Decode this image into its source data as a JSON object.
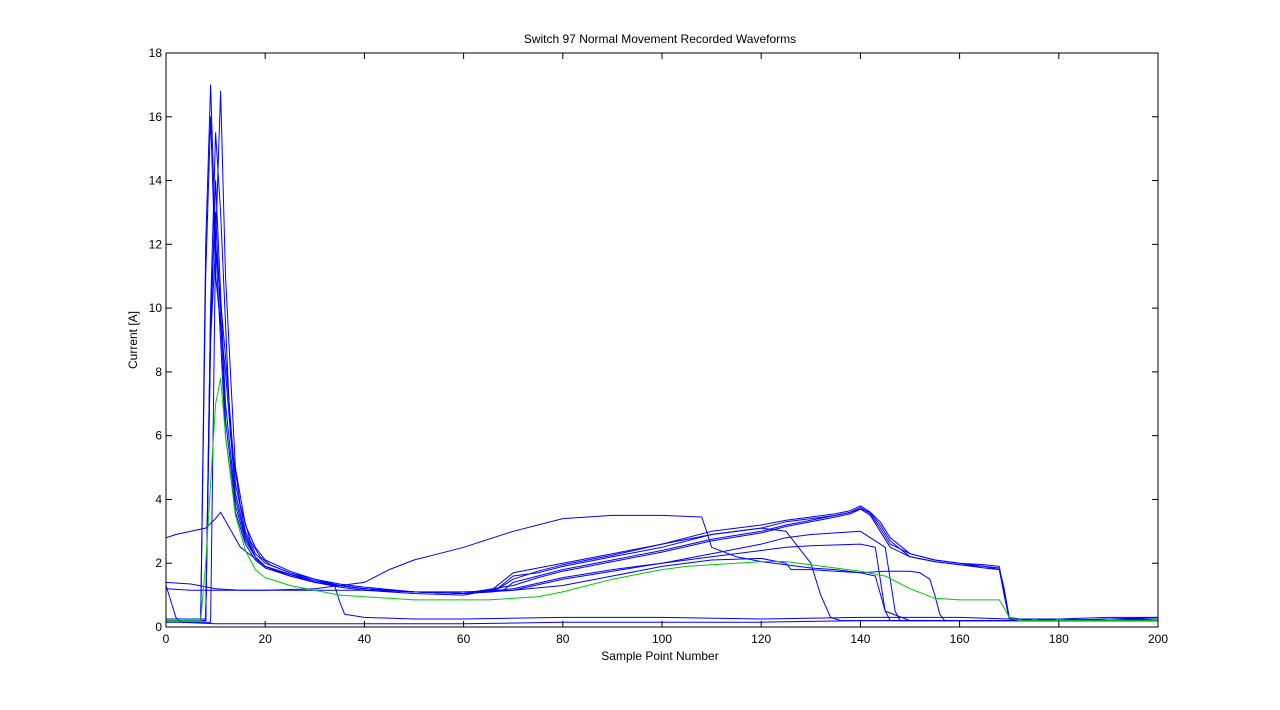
{
  "chart_data": {
    "type": "line",
    "title": "Switch 97 Normal Movement Recorded Waveforms",
    "xlabel": "Sample Point Number",
    "ylabel": "Current [A]",
    "xlim": [
      0,
      200
    ],
    "ylim": [
      0,
      18
    ],
    "xticks": [
      0,
      20,
      40,
      60,
      80,
      100,
      120,
      140,
      160,
      180,
      200
    ],
    "yticks": [
      0,
      2,
      4,
      6,
      8,
      10,
      12,
      14,
      16,
      18
    ],
    "grid": false,
    "legend": "none",
    "colors": {
      "recorded": "#0000ff",
      "reference": "#00cc00",
      "axes": "#000000"
    },
    "series": [
      {
        "color": "#0000ff",
        "x": [
          0,
          7,
          8,
          9,
          10,
          12,
          14,
          16,
          18,
          20,
          25,
          30,
          35,
          40,
          50,
          60,
          66,
          70,
          75,
          80,
          90,
          100,
          110,
          120,
          125,
          130,
          135,
          138,
          140,
          142,
          144,
          146,
          150,
          155,
          160,
          165,
          168,
          169,
          170,
          172,
          175,
          180,
          190,
          200
        ],
        "y": [
          0.25,
          0.25,
          12,
          17,
          12,
          8.5,
          4.5,
          3,
          2.3,
          2,
          1.7,
          1.45,
          1.3,
          1.2,
          1.1,
          1.05,
          1.1,
          1.6,
          1.7,
          1.9,
          2.2,
          2.5,
          2.9,
          3.1,
          3.3,
          3.4,
          3.5,
          3.6,
          3.7,
          3.6,
          3.3,
          2.8,
          2.3,
          2.1,
          2.0,
          1.95,
          1.9,
          1.0,
          0.3,
          0.25,
          0.2,
          0.2,
          0.2,
          0.2
        ]
      },
      {
        "color": "#0000ff",
        "x": [
          0,
          7,
          8,
          9,
          10,
          12,
          14,
          16,
          18,
          20,
          25,
          30,
          35,
          40,
          50,
          60,
          67,
          70,
          75,
          80,
          90,
          100,
          110,
          120,
          125,
          130,
          135,
          138,
          140,
          142,
          144,
          146,
          150,
          155,
          160,
          165,
          168,
          169,
          170,
          172,
          175,
          180,
          190,
          200
        ],
        "y": [
          0.2,
          0.2,
          11,
          16,
          11,
          8,
          4.2,
          2.9,
          2.2,
          1.9,
          1.65,
          1.4,
          1.25,
          1.15,
          1.05,
          1.0,
          1.2,
          1.5,
          1.75,
          1.95,
          2.25,
          2.6,
          3.0,
          3.2,
          3.35,
          3.45,
          3.55,
          3.65,
          3.8,
          3.6,
          3.2,
          2.7,
          2.2,
          2.05,
          1.95,
          1.9,
          1.85,
          1.2,
          0.3,
          0.2,
          0.25,
          0.2,
          0.25,
          0.3
        ]
      },
      {
        "color": "#0000ff",
        "x": [
          0,
          8,
          9,
          10,
          11,
          13,
          15,
          17,
          19,
          21,
          25,
          30,
          35,
          40,
          50,
          60,
          68,
          70,
          75,
          80,
          90,
          100,
          110,
          120,
          125,
          130,
          135,
          138,
          140,
          142,
          144,
          146,
          150,
          155,
          160,
          165,
          168,
          169,
          170,
          172,
          175,
          180,
          190,
          200
        ],
        "y": [
          0.2,
          0.2,
          10,
          15.5,
          13,
          6,
          3.8,
          2.7,
          2.2,
          1.95,
          1.7,
          1.5,
          1.3,
          1.2,
          1.1,
          1.05,
          1.15,
          1.4,
          1.6,
          1.8,
          2.1,
          2.4,
          2.75,
          3.0,
          3.2,
          3.35,
          3.5,
          3.6,
          3.75,
          3.55,
          3.1,
          2.6,
          2.3,
          2.1,
          2.0,
          1.9,
          1.8,
          1.0,
          0.25,
          0.2,
          0.2,
          0.25,
          0.2,
          0.2
        ]
      },
      {
        "color": "#0000ff",
        "x": [
          0,
          9,
          10,
          11,
          12,
          14,
          16,
          18,
          20,
          25,
          30,
          35,
          40,
          50,
          60,
          70,
          75,
          80,
          90,
          100,
          110,
          120,
          125,
          130,
          135,
          138,
          140,
          142,
          144,
          146,
          150,
          155,
          160,
          165,
          168,
          169,
          170,
          172,
          175,
          180,
          190,
          200
        ],
        "y": [
          0.15,
          0.15,
          12,
          16.8,
          11,
          5,
          3.2,
          2.5,
          2.1,
          1.75,
          1.5,
          1.35,
          1.25,
          1.1,
          1.05,
          1.3,
          1.55,
          1.75,
          2.05,
          2.35,
          2.7,
          2.95,
          3.15,
          3.3,
          3.45,
          3.55,
          3.7,
          3.5,
          3.0,
          2.5,
          2.2,
          2.05,
          1.95,
          1.85,
          1.8,
          1.1,
          0.3,
          0.2,
          0.2,
          0.2,
          0.2,
          0.25
        ]
      },
      {
        "color": "#0000ff",
        "x": [
          0,
          8,
          9,
          10,
          12,
          14,
          16,
          18,
          20,
          25,
          30,
          35,
          40,
          50,
          60,
          66,
          70,
          75,
          80,
          90,
          100,
          110,
          120,
          125,
          130,
          132,
          134,
          136,
          140,
          150,
          160,
          170,
          180,
          190,
          200
        ],
        "y": [
          0.25,
          0.25,
          9,
          14,
          7,
          4,
          2.8,
          2.2,
          1.9,
          1.65,
          1.45,
          1.3,
          1.2,
          1.1,
          1.05,
          1.2,
          1.7,
          1.85,
          2.0,
          2.3,
          2.6,
          2.9,
          3.1,
          3.0,
          2.0,
          1.0,
          0.3,
          0.2,
          0.2,
          0.2,
          0.2,
          0.2,
          0.2,
          0.25,
          0.25
        ]
      },
      {
        "color": "#0000ff",
        "x": [
          0,
          8,
          9,
          10,
          12,
          14,
          16,
          18,
          20,
          25,
          30,
          35,
          40,
          50,
          60,
          70,
          80,
          90,
          100,
          110,
          120,
          125,
          130,
          140,
          143,
          144,
          145,
          146,
          150,
          160,
          170,
          180,
          190,
          200
        ],
        "y": [
          0.2,
          0.2,
          10,
          13,
          6.5,
          3.8,
          2.7,
          2.2,
          1.9,
          1.65,
          1.45,
          1.3,
          1.2,
          1.1,
          1.05,
          1.2,
          1.55,
          1.8,
          2.0,
          2.2,
          2.4,
          2.5,
          2.55,
          2.6,
          2.5,
          1.5,
          0.5,
          0.2,
          0.2,
          0.2,
          0.2,
          0.2,
          0.2,
          0.2
        ]
      },
      {
        "color": "#0000ff",
        "x": [
          0,
          8,
          9,
          10,
          12,
          14,
          16,
          18,
          20,
          25,
          30,
          35,
          40,
          50,
          60,
          70,
          80,
          90,
          100,
          110,
          120,
          125,
          130,
          135,
          140,
          145,
          146,
          147,
          148,
          150,
          160,
          170,
          180,
          190,
          200
        ],
        "y": [
          0.2,
          0.2,
          9,
          12,
          6,
          3.6,
          2.6,
          2.1,
          1.85,
          1.6,
          1.4,
          1.3,
          1.2,
          1.1,
          1.05,
          1.15,
          1.5,
          1.75,
          2.0,
          2.3,
          2.6,
          2.8,
          2.9,
          2.95,
          3.0,
          2.5,
          1.5,
          0.5,
          0.2,
          0.2,
          0.2,
          0.2,
          0.2,
          0.2,
          0.2
        ]
      },
      {
        "color": "#0000ff",
        "x": [
          0,
          1,
          2,
          5,
          8,
          10,
          11,
          15,
          20,
          25,
          30,
          34,
          35,
          36,
          40,
          50,
          60,
          80,
          100,
          120,
          140,
          160,
          170,
          180,
          190,
          200
        ],
        "y": [
          2.8,
          2.85,
          2.9,
          3.0,
          3.1,
          3.4,
          3.6,
          2.5,
          1.9,
          1.6,
          1.4,
          1.3,
          0.8,
          0.4,
          0.3,
          0.25,
          0.25,
          0.3,
          0.3,
          0.25,
          0.3,
          0.3,
          0.25,
          0.25,
          0.3,
          0.3
        ]
      },
      {
        "color": "#0000ff",
        "x": [
          0,
          5,
          10,
          15,
          20,
          30,
          40,
          45,
          50,
          55,
          60,
          70,
          80,
          90,
          100,
          108,
          109,
          110,
          115,
          120,
          125,
          130,
          135,
          140,
          143,
          145,
          150,
          160,
          170,
          180,
          190,
          200
        ],
        "y": [
          1.4,
          1.35,
          1.2,
          1.15,
          1.15,
          1.2,
          1.4,
          1.8,
          2.1,
          2.3,
          2.5,
          3.0,
          3.4,
          3.5,
          3.5,
          3.45,
          3.0,
          2.5,
          2.2,
          2.05,
          1.95,
          1.85,
          1.8,
          1.7,
          1.6,
          0.5,
          0.2,
          0.2,
          0.2,
          0.2,
          0.2,
          0.2
        ]
      },
      {
        "color": "#0000ff",
        "x": [
          0,
          5,
          10,
          15,
          20,
          30,
          40,
          50,
          60,
          70,
          80,
          90,
          100,
          110,
          120,
          125,
          126,
          130,
          135,
          140,
          145,
          150,
          152,
          154,
          155,
          156,
          157,
          160,
          170,
          180,
          190,
          200
        ],
        "y": [
          1.2,
          1.15,
          1.15,
          1.15,
          1.15,
          1.15,
          1.15,
          1.1,
          1.1,
          1.15,
          1.3,
          1.6,
          1.9,
          2.1,
          2.15,
          2.0,
          1.8,
          1.8,
          1.75,
          1.7,
          1.75,
          1.75,
          1.7,
          1.5,
          1.0,
          0.4,
          0.2,
          0.2,
          0.2,
          0.2,
          0.2,
          0.2
        ]
      },
      {
        "color": "#0000ff",
        "x": [
          0,
          1,
          2,
          3,
          10,
          20,
          40,
          60,
          80,
          100,
          120,
          140,
          160,
          180,
          200
        ],
        "y": [
          1.3,
          0.8,
          0.3,
          0.15,
          0.1,
          0.1,
          0.1,
          0.1,
          0.15,
          0.15,
          0.15,
          0.2,
          0.2,
          0.2,
          0.2
        ]
      },
      {
        "color": "#00cc00",
        "x": [
          0,
          7,
          8,
          9,
          10,
          11,
          12,
          14,
          16,
          18,
          20,
          25,
          30,
          35,
          40,
          45,
          50,
          55,
          60,
          65,
          70,
          75,
          80,
          85,
          90,
          95,
          100,
          105,
          110,
          115,
          120,
          125,
          130,
          135,
          140,
          145,
          150,
          155,
          160,
          165,
          168,
          169,
          170,
          172,
          175,
          180,
          190,
          200
        ],
        "y": [
          0.2,
          0.2,
          2.0,
          4.5,
          7.0,
          7.8,
          6.0,
          3.5,
          2.4,
          1.8,
          1.55,
          1.3,
          1.15,
          1.0,
          0.95,
          0.9,
          0.85,
          0.85,
          0.85,
          0.85,
          0.9,
          0.95,
          1.1,
          1.3,
          1.5,
          1.65,
          1.8,
          1.9,
          1.95,
          2.0,
          2.05,
          2.05,
          1.95,
          1.85,
          1.75,
          1.6,
          1.2,
          0.9,
          0.85,
          0.85,
          0.85,
          0.6,
          0.3,
          0.2,
          0.2,
          0.2,
          0.2,
          0.2
        ]
      }
    ]
  }
}
